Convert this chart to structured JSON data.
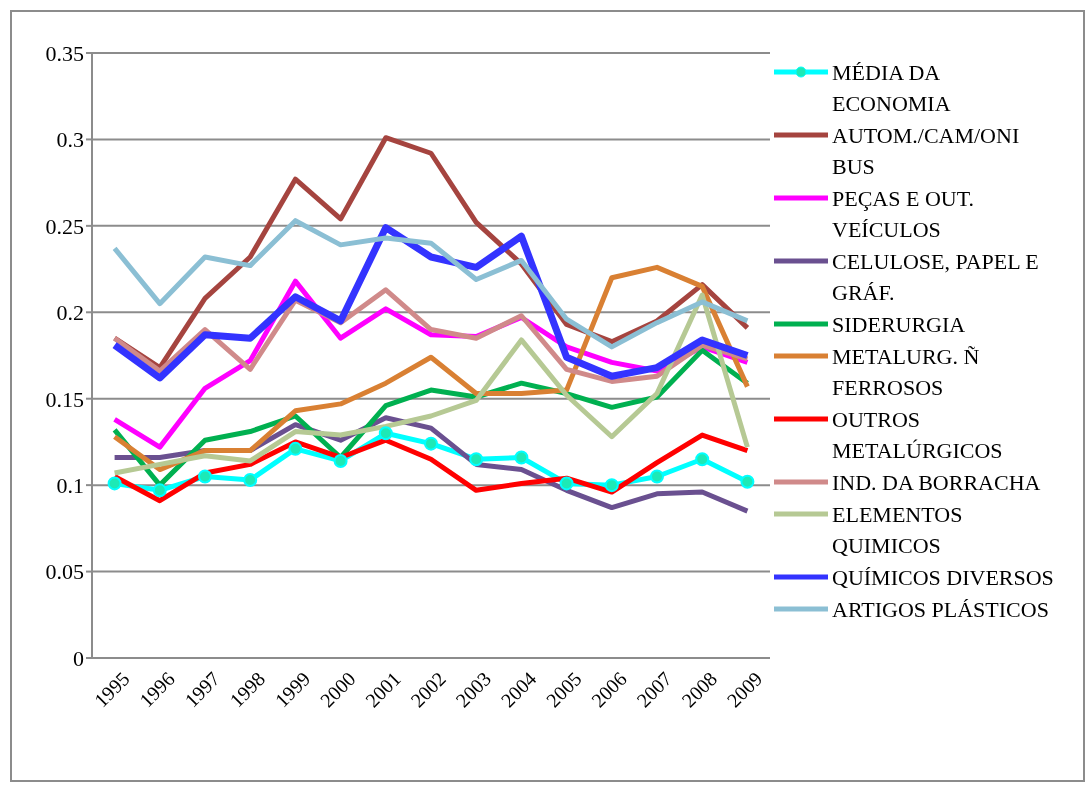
{
  "chart_data": {
    "type": "line",
    "categories": [
      "1995",
      "1996",
      "1997",
      "1998",
      "1999",
      "2000",
      "2001",
      "2002",
      "2003",
      "2004",
      "2005",
      "2006",
      "2007",
      "2008",
      "2009"
    ],
    "ylim": [
      0,
      0.35
    ],
    "yticks": [
      0,
      {
        "value": 0.05,
        "label": "0.05"
      },
      {
        "value": 0.1,
        "label": "0.1"
      },
      {
        "value": 0.15,
        "label": "0.15"
      },
      {
        "value": 0.2,
        "label": "0.2"
      },
      {
        "value": 0.25,
        "label": "0.25"
      },
      {
        "value": 0.3,
        "label": "0.3"
      },
      {
        "value": 0.35,
        "label": "0.35"
      }
    ],
    "grid": "y",
    "legend": "right",
    "line_style": "solid",
    "series": [
      {
        "name": "MÉDIA DA ECONOMIA",
        "color": "#00ffff",
        "marker": "circle",
        "values": [
          0.101,
          0.097,
          0.105,
          0.103,
          0.121,
          0.114,
          0.13,
          0.124,
          0.115,
          0.116,
          0.101,
          0.1,
          0.105,
          0.115,
          0.102
        ]
      },
      {
        "name": "AUTOM./CAM/ONI BUS",
        "color": "#a5443f",
        "marker": "none",
        "values": [
          0.185,
          0.168,
          0.208,
          0.232,
          0.277,
          0.254,
          0.301,
          0.292,
          0.252,
          0.228,
          0.193,
          0.183,
          0.195,
          0.216,
          0.191
        ]
      },
      {
        "name": "PEÇAS E OUT. VEÍCULOS",
        "color": "#ff00ff",
        "marker": "none",
        "values": [
          0.138,
          0.122,
          0.156,
          0.172,
          0.218,
          0.185,
          0.202,
          0.187,
          0.186,
          0.197,
          0.18,
          0.171,
          0.166,
          0.18,
          0.171
        ]
      },
      {
        "name": "CELULOSE, PAPEL E GRÁF.",
        "color": "#6a5090",
        "marker": "none",
        "values": [
          0.116,
          0.116,
          0.12,
          0.12,
          0.135,
          0.126,
          0.139,
          0.133,
          0.112,
          0.109,
          0.097,
          0.087,
          0.095,
          0.096,
          0.085
        ]
      },
      {
        "name": "SIDERURGIA",
        "color": "#00b050",
        "marker": "none",
        "values": [
          0.132,
          0.1,
          0.126,
          0.131,
          0.14,
          0.116,
          0.146,
          0.155,
          0.151,
          0.159,
          0.153,
          0.145,
          0.151,
          0.178,
          0.159
        ]
      },
      {
        "name": "METALURG. Ñ FERROSOS",
        "color": "#d98033",
        "marker": "none",
        "values": [
          0.128,
          0.109,
          0.12,
          0.12,
          0.143,
          0.147,
          0.159,
          0.174,
          0.153,
          0.153,
          0.155,
          0.22,
          0.226,
          0.215,
          0.157
        ]
      },
      {
        "name": "OUTROS METALÚRGICOS",
        "color": "#ff0000",
        "marker": "none",
        "values": [
          0.105,
          0.091,
          0.107,
          0.112,
          0.125,
          0.116,
          0.126,
          0.115,
          0.097,
          0.101,
          0.104,
          0.096,
          0.113,
          0.129,
          0.12
        ]
      },
      {
        "name": "IND. DA BORRACHA",
        "color": "#d08a8a",
        "marker": "none",
        "values": [
          0.185,
          0.166,
          0.19,
          0.167,
          0.207,
          0.194,
          0.213,
          0.19,
          0.185,
          0.198,
          0.167,
          0.16,
          0.163,
          0.181,
          0.173
        ]
      },
      {
        "name": "ELEMENTOS QUIMICOS",
        "color": "#b6c994",
        "marker": "none",
        "values": [
          0.107,
          0.112,
          0.117,
          0.114,
          0.131,
          0.129,
          0.134,
          0.14,
          0.149,
          0.184,
          0.152,
          0.128,
          0.153,
          0.21,
          0.122
        ]
      },
      {
        "name": "QUÍMICOS DIVERSOS",
        "color": "#3333ff",
        "marker": "none",
        "values": [
          0.181,
          0.162,
          0.187,
          0.185,
          0.209,
          0.195,
          0.249,
          0.232,
          0.226,
          0.244,
          0.174,
          0.163,
          0.168,
          0.184,
          0.175
        ]
      },
      {
        "name": "ARTIGOS PLÁSTICOS",
        "color": "#8bbfd4",
        "marker": "none",
        "values": [
          0.237,
          0.205,
          0.232,
          0.227,
          0.253,
          0.239,
          0.243,
          0.24,
          0.219,
          0.23,
          0.196,
          0.18,
          0.194,
          0.206,
          0.195
        ]
      }
    ]
  }
}
